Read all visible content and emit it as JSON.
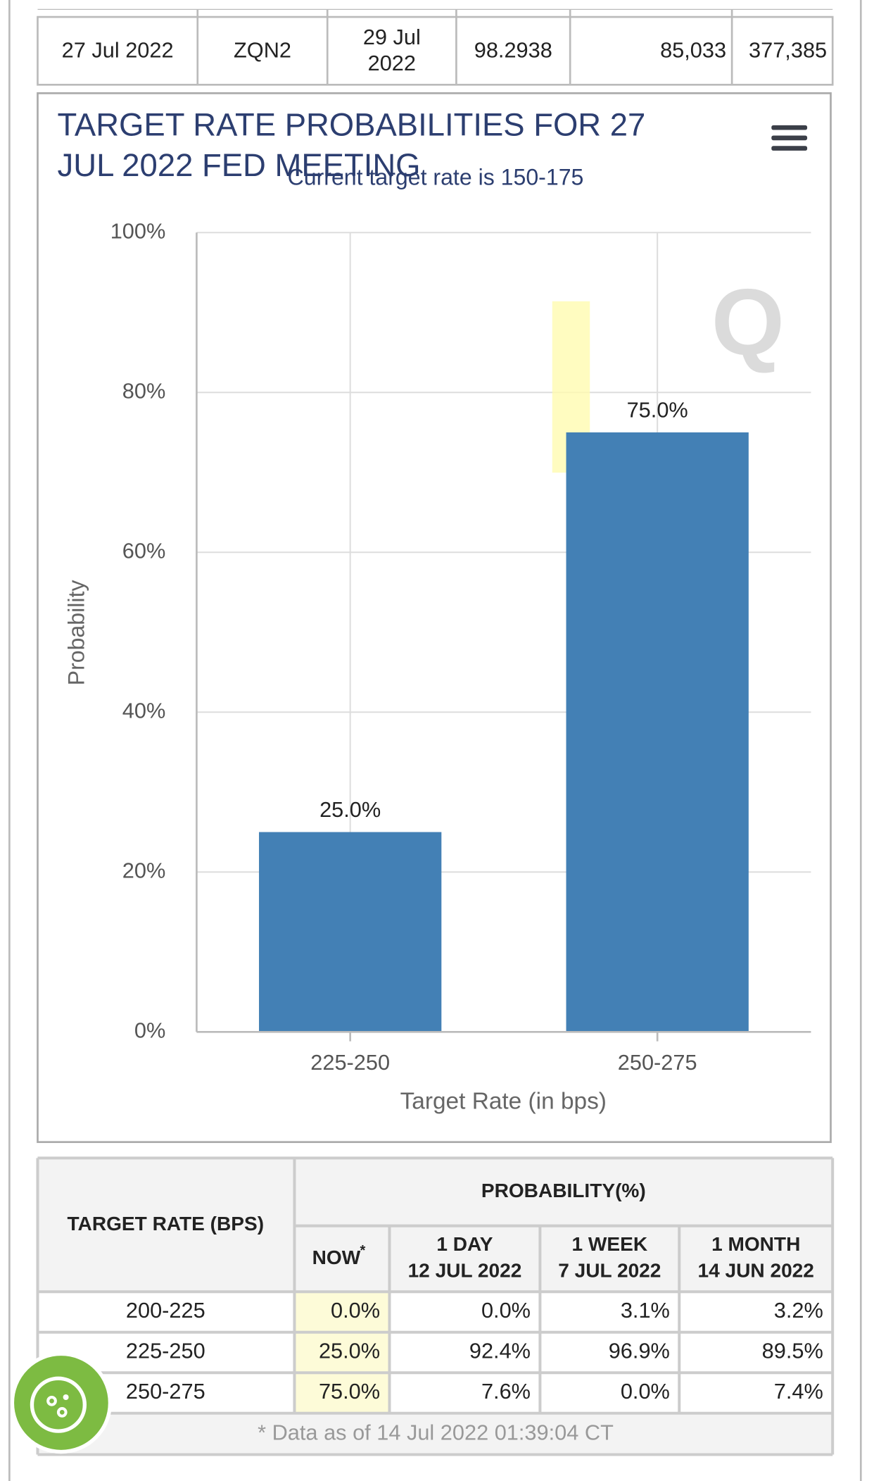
{
  "top_table": {
    "rows": [
      [
        "27 Jul 2022",
        "ZQN2",
        "29 Jul 2022",
        "98.2938",
        "85,033",
        "377,385"
      ]
    ]
  },
  "chart_data": {
    "type": "bar",
    "title": "TARGET RATE PROBABILITIES FOR 27 JUL 2022 FED MEETING",
    "subtitle": "Current target rate is 150-175",
    "categories": [
      "225-250",
      "250-275"
    ],
    "values": [
      25.0,
      75.0
    ],
    "value_labels": [
      "25.0%",
      "75.0%"
    ],
    "color": "#4380b5",
    "x_label": "Target Rate (in bps)",
    "y_label": "Probability",
    "ylim": [
      0,
      100
    ],
    "yticks": [
      {
        "value": 0,
        "label": "0%"
      },
      {
        "value": 20,
        "label": "20%"
      },
      {
        "value": 40,
        "label": "40%"
      },
      {
        "value": 60,
        "label": "60%"
      },
      {
        "value": 80,
        "label": "80%"
      },
      {
        "value": 100,
        "label": "100%"
      }
    ],
    "grid": true
  },
  "prob_table": {
    "rate_header": "TARGET RATE (BPS)",
    "group_header": "PROBABILITY(%)",
    "columns": [
      {
        "label": "NOW",
        "note": "*"
      },
      {
        "label": "1 DAY",
        "date": "12 JUL 2022"
      },
      {
        "label": "1 WEEK",
        "date": "7 JUL 2022"
      },
      {
        "label": "1 MONTH",
        "date": "14 JUN 2022"
      }
    ],
    "rows": [
      [
        "200-225",
        "0.0%",
        "0.0%",
        "3.1%",
        "3.2%"
      ],
      [
        "225-250",
        "25.0%",
        "92.4%",
        "96.9%",
        "89.5%"
      ],
      [
        "250-275",
        "75.0%",
        "7.6%",
        "0.0%",
        "7.4%"
      ]
    ],
    "footnote": "* Data as of 14 Jul 2022 01:39:04 CT"
  }
}
